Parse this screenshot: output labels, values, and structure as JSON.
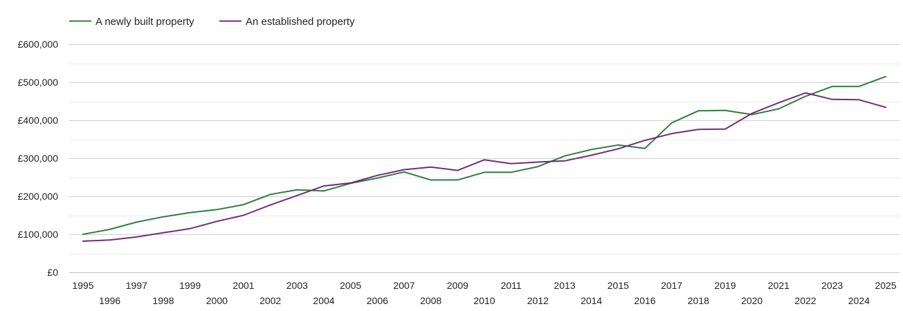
{
  "chart_data": {
    "type": "line",
    "title": "",
    "xlabel": "",
    "ylabel": "",
    "ylim": [
      0,
      600000
    ],
    "grid": true,
    "legend_position": "top-left",
    "x": [
      1995,
      1996,
      1997,
      1998,
      1999,
      2000,
      2001,
      2002,
      2003,
      2004,
      2005,
      2006,
      2007,
      2008,
      2009,
      2010,
      2011,
      2012,
      2013,
      2014,
      2015,
      2016,
      2017,
      2018,
      2019,
      2020,
      2021,
      2022,
      2023,
      2024,
      2025
    ],
    "x_tick_labels": [
      "1995",
      "1996",
      "1997",
      "1998",
      "1999",
      "2000",
      "2001",
      "2002",
      "2003",
      "2004",
      "2005",
      "2006",
      "2007",
      "2008",
      "2009",
      "2010",
      "2011",
      "2012",
      "2013",
      "2014",
      "2015",
      "2016",
      "2017",
      "2018",
      "2019",
      "2020",
      "2021",
      "2022",
      "2023",
      "2024",
      "2025"
    ],
    "y_ticks": [
      0,
      100000,
      200000,
      300000,
      400000,
      500000,
      600000
    ],
    "y_tick_labels": [
      "£0",
      "£100,000",
      "£200,000",
      "£300,000",
      "£400,000",
      "£500,000",
      "£600,000"
    ],
    "series": [
      {
        "name": "A newly built property",
        "color": "#2e7d3a",
        "values": [
          100000,
          113000,
          132000,
          146000,
          157000,
          165000,
          178000,
          205000,
          217000,
          214000,
          234000,
          248000,
          264000,
          243000,
          243000,
          263000,
          263000,
          278000,
          306000,
          323000,
          335000,
          326000,
          393000,
          425000,
          426000,
          415000,
          430000,
          463000,
          489000,
          489000,
          515000
        ]
      },
      {
        "name": "An established property",
        "color": "#722a7c",
        "values": [
          82000,
          85000,
          93000,
          104000,
          115000,
          134000,
          150000,
          177000,
          202000,
          227000,
          235000,
          255000,
          270000,
          277000,
          268000,
          296000,
          286000,
          290000,
          293000,
          308000,
          325000,
          347000,
          365000,
          376000,
          377000,
          418000,
          446000,
          472000,
          455000,
          454000,
          434000
        ]
      }
    ]
  }
}
